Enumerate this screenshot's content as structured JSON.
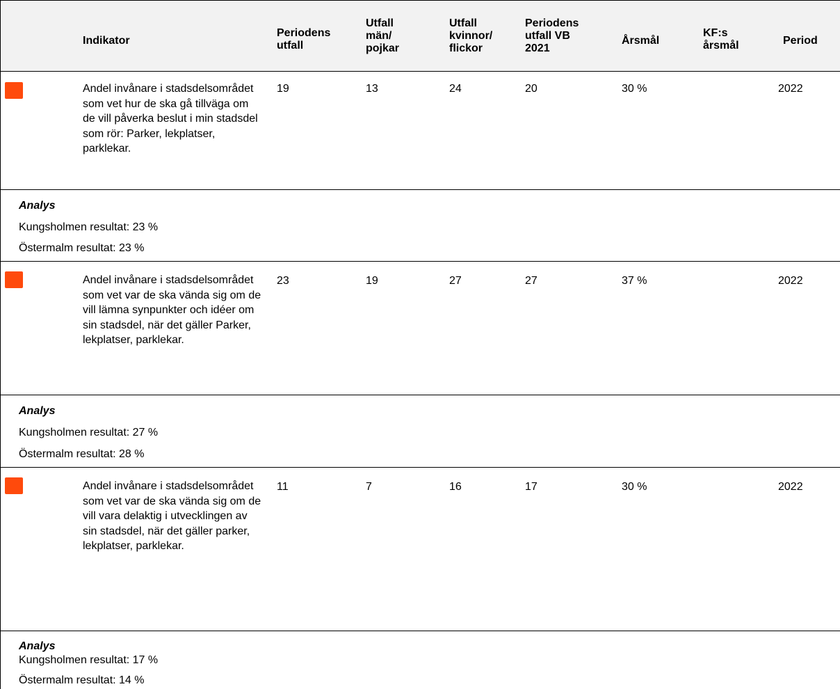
{
  "colors": {
    "status_red": "#ff4a0c",
    "header_bg": "#f2f2f2"
  },
  "header": {
    "indicator": "Indikator",
    "periodens_utfall": "Periodens\nutfall",
    "utfall_man": "Utfall\nmän/\npojkar",
    "utfall_kvinnor": "Utfall\nkvinnor/\nflickor",
    "periodens_vb": "Periodens\nutfall VB\n2021",
    "arsmal": "Årsmål",
    "kf_arsmal": "KF:s\nårsmål",
    "period": "Period"
  },
  "rows": [
    {
      "indicator": "Andel invånare i stadsdelsområdet som vet hur de ska gå tillväga om de vill påverka beslut i min stadsdel som rör: Parker, lekplatser, parklekar.",
      "periodens_utfall": "19",
      "utfall_man": "13",
      "utfall_kvinnor": "24",
      "periodens_vb": "20",
      "arsmal": "30 %",
      "kf_arsmal": "",
      "period": "2022",
      "analys_title": "Analys",
      "analys_lines": [
        "Kungsholmen resultat: 23 %",
        "Östermalm resultat: 23 %"
      ]
    },
    {
      "indicator": "Andel invånare i stadsdelsområdet som vet var de ska vända sig om de vill lämna synpunkter och idéer om sin stadsdel, när det gäller Parker, lekplatser, parklekar.",
      "periodens_utfall": "23",
      "utfall_man": "19",
      "utfall_kvinnor": "27",
      "periodens_vb": "27",
      "arsmal": "37 %",
      "kf_arsmal": "",
      "period": "2022",
      "analys_title": "Analys",
      "analys_lines": [
        "Kungsholmen resultat: 27 %",
        "Östermalm resultat: 28 %"
      ]
    },
    {
      "indicator": "Andel invånare i stadsdelsområdet som vet var de ska vända sig om de vill vara delaktig i utvecklingen av sin stadsdel, när det gäller parker, lekplatser, parklekar.",
      "periodens_utfall": "11",
      "utfall_man": "7",
      "utfall_kvinnor": "16",
      "periodens_vb": "17",
      "arsmal": "30 %",
      "kf_arsmal": "",
      "period": "2022",
      "analys_title": "Analys",
      "analys_lines": [
        "Kungsholmen resultat: 17 %",
        "Östermalm resultat: 14 %"
      ]
    }
  ]
}
